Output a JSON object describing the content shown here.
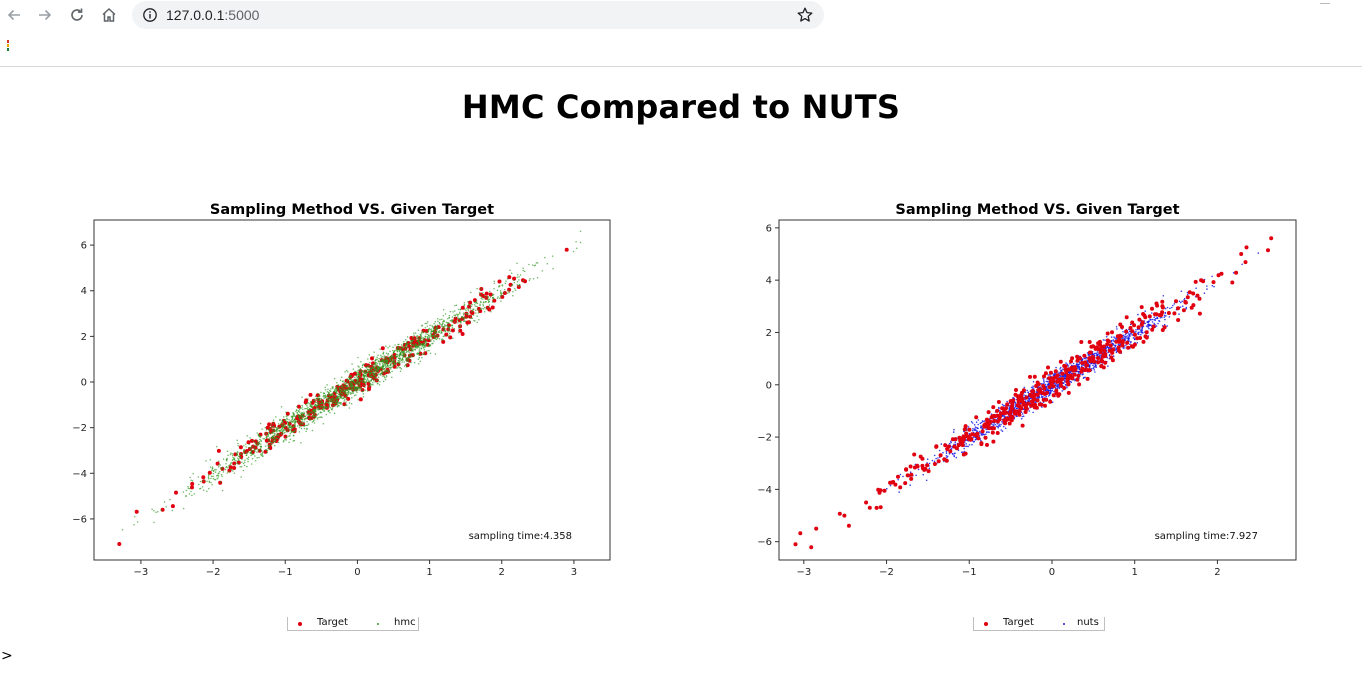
{
  "browser": {
    "url_host": "127.0.0.1",
    "url_port": ":5000"
  },
  "page": {
    "title": "HMC Compared to NUTS",
    "trailing_text": ">"
  },
  "colors": {
    "target": "#e0000f",
    "hmc": "#2f9a1f",
    "nuts": "#1a1ae6"
  },
  "chart_data": [
    {
      "type": "scatter",
      "title": "Sampling Method VS. Given Target",
      "xlim": [
        -3.65,
        3.5
      ],
      "ylim": [
        -7.8,
        7.1
      ],
      "xticks": [
        -3,
        -2,
        -1,
        0,
        1,
        2,
        3
      ],
      "yticks": [
        -6,
        -4,
        -2,
        0,
        2,
        4,
        6
      ],
      "annotation": "sampling time:4.358",
      "legend": [
        "Target",
        "hmc"
      ],
      "series": [
        {
          "name": "Target",
          "role": "target",
          "slope": 2.0,
          "spread": 0.3,
          "x_sd": 1.0,
          "n": 320,
          "x_range": [
            -3.3,
            2.9
          ]
        },
        {
          "name": "hmc",
          "role": "sampler",
          "slope": 2.0,
          "spread": 0.3,
          "x_sd": 1.05,
          "n": 2200,
          "x_range": [
            -3.5,
            3.15
          ]
        }
      ],
      "extreme_points": [
        {
          "x": -3.3,
          "y": -7.1
        },
        {
          "x": -2.7,
          "y": -5.6
        },
        {
          "x": 2.9,
          "y": 5.8
        }
      ]
    },
    {
      "type": "scatter",
      "title": "Sampling Method VS. Given Target",
      "xlim": [
        -3.3,
        2.95
      ],
      "ylim": [
        -6.7,
        6.3
      ],
      "xticks": [
        -3,
        -2,
        -1,
        0,
        1,
        2
      ],
      "yticks": [
        -6,
        -4,
        -2,
        0,
        2,
        4,
        6
      ],
      "annotation": "sampling time:7.927",
      "legend": [
        "Target",
        "nuts"
      ],
      "series": [
        {
          "name": "Target",
          "role": "target",
          "slope": 2.0,
          "spread": 0.3,
          "x_sd": 1.0,
          "n": 420,
          "x_range": [
            -3.1,
            2.65
          ]
        },
        {
          "name": "nuts",
          "role": "sampler",
          "slope": 2.0,
          "spread": 0.22,
          "x_sd": 0.75,
          "n": 1600,
          "x_range": [
            -2.0,
            2.6
          ]
        }
      ],
      "extreme_points": [
        {
          "x": -3.1,
          "y": -6.1
        },
        {
          "x": -2.85,
          "y": -5.5
        },
        {
          "x": 2.65,
          "y": 5.6
        }
      ]
    }
  ]
}
